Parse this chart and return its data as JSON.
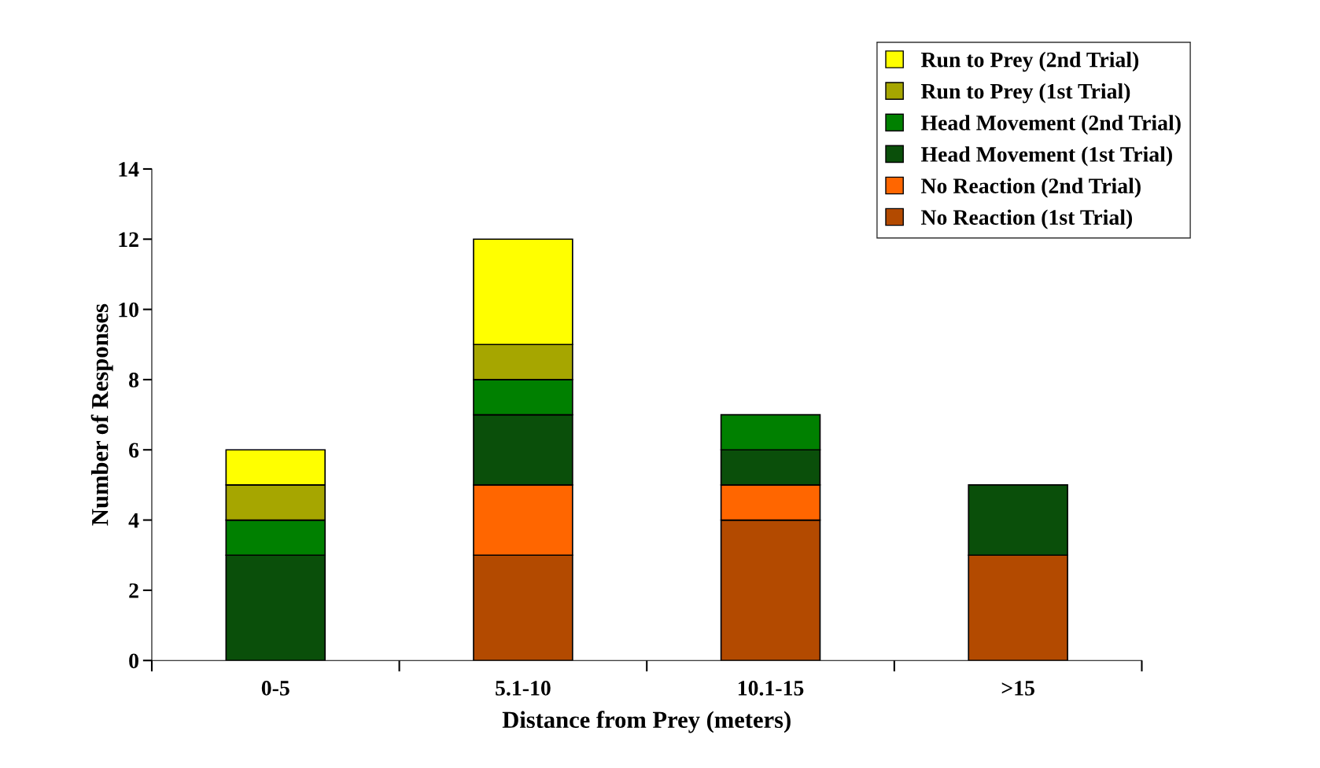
{
  "chart_data": {
    "type": "bar",
    "stacked": true,
    "xlabel": "Distance from Prey (meters)",
    "ylabel": "Number of Responses",
    "categories": [
      "0-5",
      "5.1-10",
      "10.1-15",
      ">15"
    ],
    "series": [
      {
        "name": "No Reaction (1st Trial)",
        "color": "#b34a00",
        "values": [
          0,
          3,
          4,
          3
        ]
      },
      {
        "name": "No Reaction (2nd Trial)",
        "color": "#ff6600",
        "values": [
          0,
          2,
          1,
          0
        ]
      },
      {
        "name": "Head Movement (1st Trial)",
        "color": "#0a4f0a",
        "values": [
          3,
          2,
          1,
          2
        ]
      },
      {
        "name": "Head Movement (2nd Trial)",
        "color": "#008000",
        "values": [
          1,
          1,
          1,
          0
        ]
      },
      {
        "name": "Run to Prey (1st Trial)",
        "color": "#a6a600",
        "values": [
          1,
          1,
          0,
          0
        ]
      },
      {
        "name": "Run to Prey (2nd Trial)",
        "color": "#ffff00",
        "values": [
          1,
          3,
          0,
          0
        ]
      }
    ],
    "ylim": [
      0,
      14
    ],
    "yticks": [
      0,
      2,
      4,
      6,
      8,
      10,
      12,
      14
    ],
    "grid": false,
    "legend": "top right"
  }
}
